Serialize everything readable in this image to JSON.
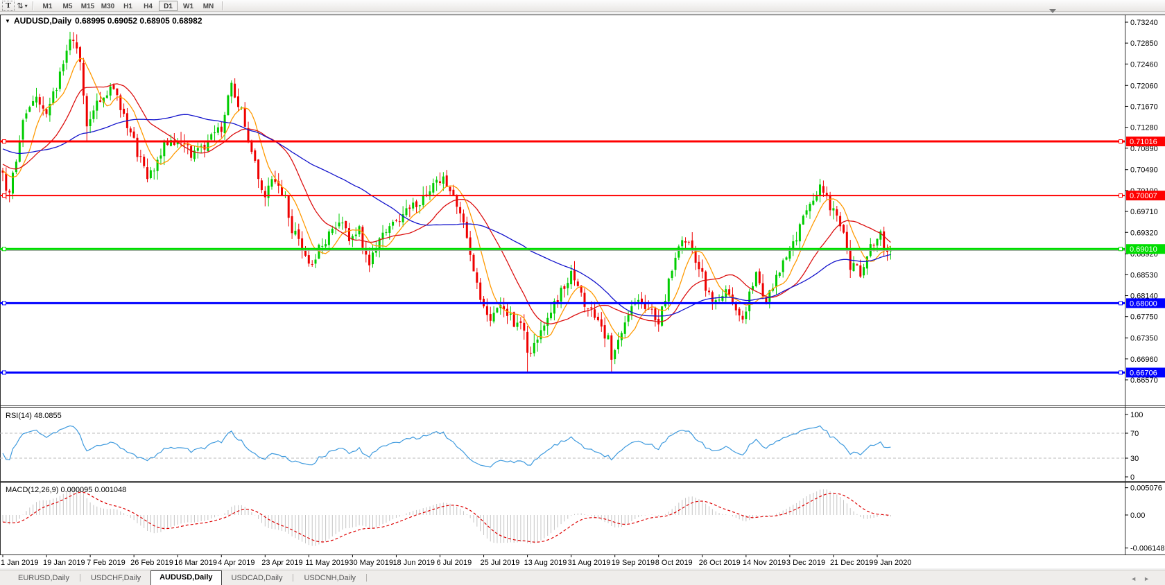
{
  "toolbar": {
    "text_tool": "T",
    "arrows_tool_glyph": "⇅",
    "dropdown_glyph": "▾",
    "periods": [
      {
        "label": "M1",
        "active": false
      },
      {
        "label": "M5",
        "active": false
      },
      {
        "label": "M15",
        "active": false
      },
      {
        "label": "M30",
        "active": false
      },
      {
        "label": "H1",
        "active": false
      },
      {
        "label": "H4",
        "active": false
      },
      {
        "label": "D1",
        "active": true
      },
      {
        "label": "W1",
        "active": false
      },
      {
        "label": "MN",
        "active": false
      }
    ]
  },
  "chart_header": {
    "dropdown_glyph": "▼",
    "symbol": "AUDUSD,Daily",
    "ohlc": "0.68995 0.69052 0.68905 0.68982"
  },
  "chart_data": [
    {
      "type": "candlestick",
      "symbol": "AUDUSD",
      "timeframe": "Daily",
      "ohlc": {
        "open": "0.68995",
        "high": "0.69052",
        "low": "0.68905",
        "close": "0.68982"
      },
      "candle_count": 265,
      "colors": {
        "up": "#00CC00",
        "down": "#EE0000"
      },
      "y_axis": {
        "ticks": [
          "0.73240",
          "0.72850",
          "0.72460",
          "0.72060",
          "0.71670",
          "0.71280",
          "0.70890",
          "0.70490",
          "0.70100",
          "0.69710",
          "0.69320",
          "0.68920",
          "0.68530",
          "0.68140",
          "0.67750",
          "0.67350",
          "0.66960",
          "0.66570"
        ],
        "range": [
          0.6657,
          0.7324
        ]
      },
      "x_axis": {
        "labels": [
          {
            "i": 0,
            "text": "1 Jan 2019"
          },
          {
            "i": 13,
            "text": "19 Jan 2019"
          },
          {
            "i": 26,
            "text": "7 Feb 2019"
          },
          {
            "i": 39,
            "text": "26 Feb 2019"
          },
          {
            "i": 52,
            "text": "16 Mar 2019"
          },
          {
            "i": 65,
            "text": "4 Apr 2019"
          },
          {
            "i": 78,
            "text": "23 Apr 2019"
          },
          {
            "i": 91,
            "text": "11 May 2019"
          },
          {
            "i": 104,
            "text": "30 May 2019"
          },
          {
            "i": 117,
            "text": "18 Jun 2019"
          },
          {
            "i": 130,
            "text": "6 Jul 2019"
          },
          {
            "i": 143,
            "text": "25 Jul 2019"
          },
          {
            "i": 156,
            "text": "13 Aug 2019"
          },
          {
            "i": 169,
            "text": "31 Aug 2019"
          },
          {
            "i": 182,
            "text": "19 Sep 2019"
          },
          {
            "i": 195,
            "text": "8 Oct 2019"
          },
          {
            "i": 208,
            "text": "26 Oct 2019"
          },
          {
            "i": 221,
            "text": "14 Nov 2019"
          },
          {
            "i": 234,
            "text": "3 Dec 2019"
          },
          {
            "i": 247,
            "text": "21 Dec 2019"
          },
          {
            "i": 260,
            "text": "9 Jan 2020"
          }
        ]
      },
      "keypoints": [
        [
          0,
          0.704
        ],
        [
          2,
          0.7
        ],
        [
          6,
          0.714
        ],
        [
          10,
          0.718
        ],
        [
          13,
          0.716
        ],
        [
          16,
          0.72
        ],
        [
          20,
          0.729
        ],
        [
          23,
          0.726
        ],
        [
          25,
          0.712
        ],
        [
          28,
          0.717
        ],
        [
          32,
          0.7205
        ],
        [
          36,
          0.715
        ],
        [
          40,
          0.708
        ],
        [
          43,
          0.7035
        ],
        [
          48,
          0.709
        ],
        [
          52,
          0.711
        ],
        [
          57,
          0.7075
        ],
        [
          61,
          0.71
        ],
        [
          65,
          0.713
        ],
        [
          68,
          0.72
        ],
        [
          71,
          0.716
        ],
        [
          76,
          0.704
        ],
        [
          78,
          0.6995
        ],
        [
          80,
          0.703
        ],
        [
          84,
          0.699
        ],
        [
          86,
          0.694
        ],
        [
          91,
          0.687
        ],
        [
          94,
          0.69
        ],
        [
          100,
          0.695
        ],
        [
          103,
          0.692
        ],
        [
          106,
          0.6935
        ],
        [
          109,
          0.687
        ],
        [
          114,
          0.694
        ],
        [
          118,
          0.696
        ],
        [
          123,
          0.6985
        ],
        [
          127,
          0.701
        ],
        [
          131,
          0.704
        ],
        [
          134,
          0.7
        ],
        [
          137,
          0.696
        ],
        [
          140,
          0.685
        ],
        [
          143,
          0.679
        ],
        [
          145,
          0.6775
        ],
        [
          149,
          0.679
        ],
        [
          152,
          0.676
        ],
        [
          155,
          0.6755
        ],
        [
          156,
          0.67
        ],
        [
          158,
          0.673
        ],
        [
          161,
          0.676
        ],
        [
          164,
          0.68
        ],
        [
          169,
          0.6855
        ],
        [
          173,
          0.68
        ],
        [
          177,
          0.6765
        ],
        [
          180,
          0.673
        ],
        [
          181,
          0.6705
        ],
        [
          185,
          0.677
        ],
        [
          190,
          0.6805
        ],
        [
          195,
          0.677
        ],
        [
          199,
          0.686
        ],
        [
          202,
          0.6925
        ],
        [
          205,
          0.69
        ],
        [
          211,
          0.68
        ],
        [
          215,
          0.6825
        ],
        [
          220,
          0.6765
        ],
        [
          224,
          0.686
        ],
        [
          227,
          0.68
        ],
        [
          232,
          0.688
        ],
        [
          237,
          0.694
        ],
        [
          241,
          0.6995
        ],
        [
          243,
          0.7025
        ],
        [
          246,
          0.698
        ],
        [
          250,
          0.693
        ],
        [
          252,
          0.687
        ],
        [
          255,
          0.6855
        ],
        [
          258,
          0.6905
        ],
        [
          261,
          0.693
        ],
        [
          263,
          0.6885
        ],
        [
          264,
          0.68982
        ]
      ],
      "spikes": {
        "2": {
          "l": 0.6988
        },
        "20": {
          "h": 0.7306
        },
        "25": {
          "l": 0.71
        },
        "156": {
          "l": 0.667
        },
        "181": {
          "l": 0.6671
        },
        "243": {
          "h": 0.7032
        }
      },
      "moving_averages": [
        {
          "period": 8,
          "color": "#FF9900"
        },
        {
          "period": 20,
          "color": "#DC1010"
        },
        {
          "period": 50,
          "color": "#1414CC"
        }
      ],
      "horizontal_lines": [
        {
          "price": 0.71016,
          "label": "0.71016",
          "color": "#FF0000",
          "width": 3
        },
        {
          "price": 0.70007,
          "label": "0.70007",
          "color": "#FF0000",
          "width": 2
        },
        {
          "price": 0.6901,
          "label": "0.69010",
          "color": "#00DD00",
          "width": 3
        },
        {
          "price": 0.68,
          "label": "0.68000",
          "color": "#0000FF",
          "width": 3
        },
        {
          "price": 0.66706,
          "label": "0.66706",
          "color": "#0000FF",
          "width": 3
        }
      ],
      "bid_line": {
        "price": 0.68982,
        "color": "#A0A0A0"
      }
    },
    {
      "type": "line",
      "name": "RSI",
      "label": "RSI(14) 48.0855",
      "period": 14,
      "value": 48.0855,
      "color": "#3E9ADE",
      "levels": [
        70,
        30
      ],
      "scale": [
        0,
        100
      ],
      "ticks": [
        {
          "v": 100,
          "text": "100"
        },
        {
          "v": 70,
          "text": "70"
        },
        {
          "v": 30,
          "text": "30"
        },
        {
          "v": 0,
          "text": "0"
        }
      ]
    },
    {
      "type": "macd",
      "label": "MACD(12,26,9) 0.000095 0.001048",
      "fast": 12,
      "slow": 26,
      "signal_period": 9,
      "values": {
        "macd": 9.5e-05,
        "signal": 0.001048
      },
      "hist_color": "#C4C4C4",
      "signal_color": "#DD0000",
      "ticks": [
        {
          "v": 0.005076,
          "text": "0.005076"
        },
        {
          "v": 0,
          "text": "0.00"
        },
        {
          "v": -0.006148,
          "text": "-0.006148"
        }
      ]
    }
  ],
  "bottom_tabs": {
    "tabs": [
      {
        "label": "EURUSD,Daily",
        "active": false
      },
      {
        "label": "USDCHF,Daily",
        "active": false
      },
      {
        "label": "AUDUSD,Daily",
        "active": true
      },
      {
        "label": "USDCAD,Daily",
        "active": false
      },
      {
        "label": "USDCNH,Daily",
        "active": false
      }
    ],
    "scroll_left": "◄",
    "scroll_right": "►"
  }
}
